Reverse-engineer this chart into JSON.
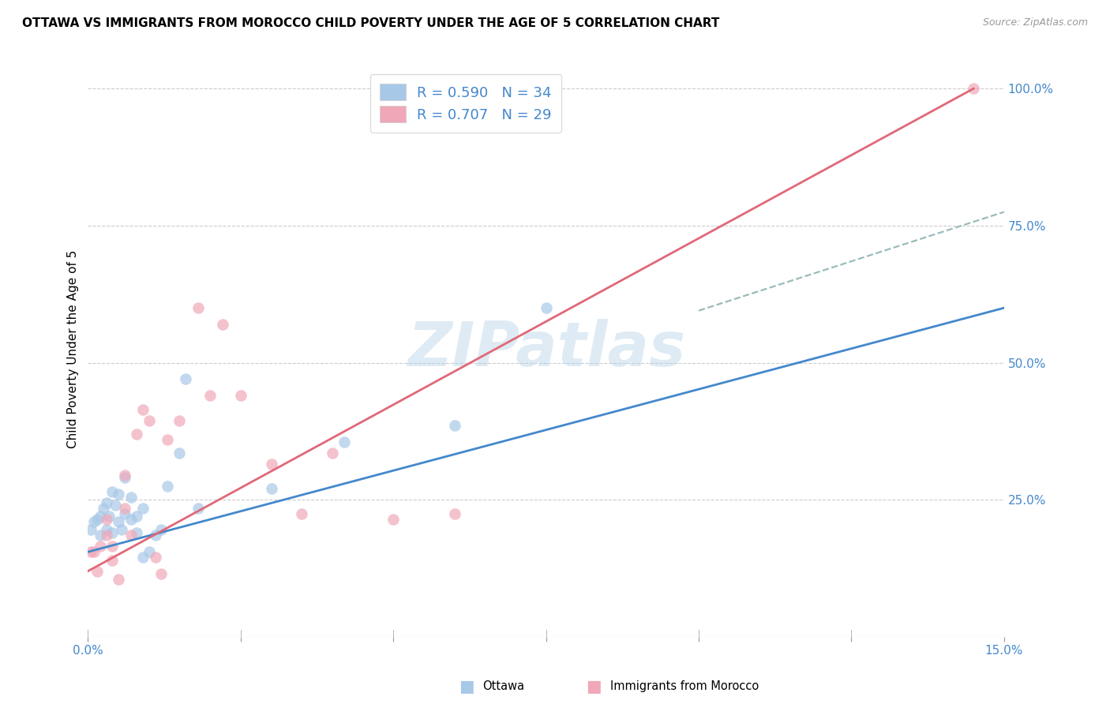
{
  "title": "OTTAWA VS IMMIGRANTS FROM MOROCCO CHILD POVERTY UNDER THE AGE OF 5 CORRELATION CHART",
  "source": "Source: ZipAtlas.com",
  "ylabel": "Child Poverty Under the Age of 5",
  "xlim": [
    0.0,
    0.15
  ],
  "ylim": [
    0.0,
    1.05
  ],
  "xticks": [
    0.0,
    0.025,
    0.05,
    0.075,
    0.1,
    0.125,
    0.15
  ],
  "xticklabels": [
    "0.0%",
    "",
    "",
    "",
    "",
    "",
    "15.0%"
  ],
  "ytick_positions": [
    0.0,
    0.25,
    0.5,
    0.75,
    1.0
  ],
  "ytick_labels": [
    "",
    "25.0%",
    "50.0%",
    "75.0%",
    "100.0%"
  ],
  "watermark": "ZIPatlas",
  "legend_labels": [
    "Ottawa",
    "Immigrants from Morocco"
  ],
  "ottawa_R": "R = 0.590",
  "ottawa_N": "N = 34",
  "morocco_R": "R = 0.707",
  "morocco_N": "N = 29",
  "blue_color": "#a8c8e8",
  "pink_color": "#f0a8b8",
  "line_blue": "#4488cc",
  "line_pink": "#e06878",
  "dashed_line_color": "#99bbbb",
  "ottawa_x": [
    0.0005,
    0.001,
    0.0015,
    0.002,
    0.002,
    0.0025,
    0.003,
    0.003,
    0.0035,
    0.004,
    0.004,
    0.0045,
    0.005,
    0.005,
    0.0055,
    0.006,
    0.006,
    0.007,
    0.007,
    0.008,
    0.008,
    0.009,
    0.009,
    0.01,
    0.011,
    0.012,
    0.013,
    0.015,
    0.016,
    0.018,
    0.03,
    0.042,
    0.06,
    0.075
  ],
  "ottawa_y": [
    0.195,
    0.21,
    0.215,
    0.22,
    0.185,
    0.235,
    0.195,
    0.245,
    0.22,
    0.19,
    0.265,
    0.24,
    0.21,
    0.26,
    0.195,
    0.225,
    0.29,
    0.255,
    0.215,
    0.22,
    0.19,
    0.235,
    0.145,
    0.155,
    0.185,
    0.195,
    0.275,
    0.335,
    0.47,
    0.235,
    0.27,
    0.355,
    0.385,
    0.6
  ],
  "morocco_x": [
    0.0005,
    0.001,
    0.0015,
    0.002,
    0.003,
    0.003,
    0.004,
    0.004,
    0.005,
    0.006,
    0.006,
    0.007,
    0.008,
    0.009,
    0.01,
    0.011,
    0.012,
    0.013,
    0.015,
    0.018,
    0.02,
    0.022,
    0.025,
    0.03,
    0.035,
    0.04,
    0.05,
    0.06,
    0.145
  ],
  "morocco_y": [
    0.155,
    0.155,
    0.12,
    0.165,
    0.185,
    0.215,
    0.14,
    0.165,
    0.105,
    0.235,
    0.295,
    0.185,
    0.37,
    0.415,
    0.395,
    0.145,
    0.115,
    0.36,
    0.395,
    0.6,
    0.44,
    0.57,
    0.44,
    0.315,
    0.225,
    0.335,
    0.215,
    0.225,
    1.0
  ],
  "ottawa_line_x": [
    0.0,
    0.15
  ],
  "ottawa_line_y": [
    0.155,
    0.6
  ],
  "morocco_line_x": [
    0.0,
    0.145
  ],
  "morocco_line_y": [
    0.12,
    1.0
  ],
  "dashed_line_x": [
    0.1,
    0.15
  ],
  "dashed_line_y": [
    0.595,
    0.775
  ],
  "figsize": [
    14.06,
    8.92
  ],
  "dpi": 100
}
